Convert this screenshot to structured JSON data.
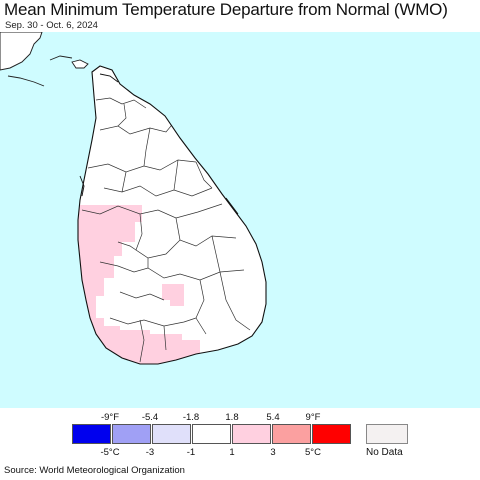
{
  "header": {
    "title": "Mean Minimum Temperature Departure from Normal (WMO)",
    "subtitle": "Sep. 30 - Oct. 6, 2024"
  },
  "map": {
    "ocean_color": "#cffcff",
    "land_color": "#ffffff",
    "warm_anomaly_color": "#ffd0e0",
    "boundary_color": "#222222"
  },
  "legend": {
    "fahrenheit_ticks": [
      "-9°F",
      "-5.4",
      "-1.8",
      "1.8",
      "5.4",
      "9°F"
    ],
    "celsius_ticks": [
      "-5°C",
      "-3",
      "-1",
      "1",
      "3",
      "5°C"
    ],
    "bins": [
      {
        "color": "#0000ee"
      },
      {
        "color": "#a0a0f5"
      },
      {
        "color": "#e0e0fa"
      },
      {
        "color": "#ffffff"
      },
      {
        "color": "#ffd0e0"
      },
      {
        "color": "#fba0a0"
      },
      {
        "color": "#ff0000"
      }
    ],
    "no_data_label": "No Data",
    "no_data_color": "#f4f1f1"
  },
  "footer": {
    "source": "Source: World Meteorological Organization"
  }
}
